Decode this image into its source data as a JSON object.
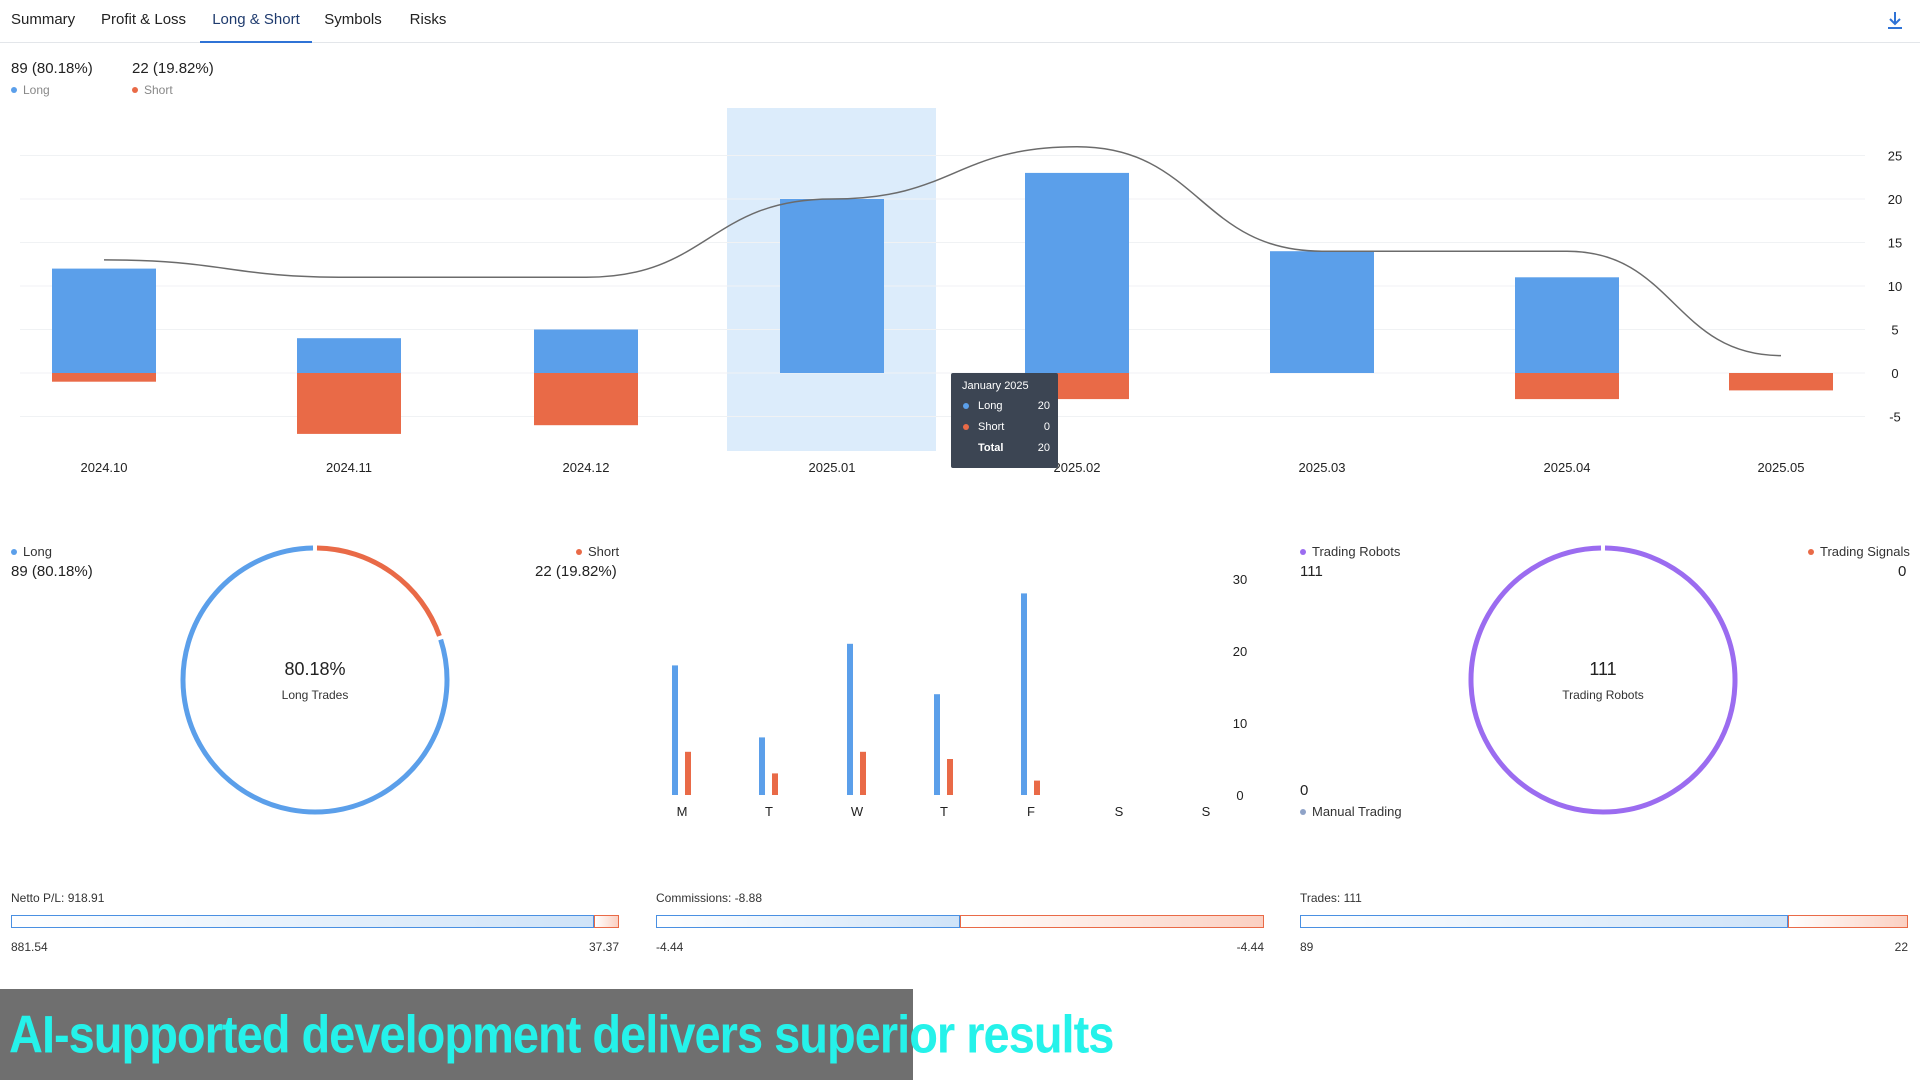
{
  "tabs": [
    {
      "label": "Summary",
      "active": false
    },
    {
      "label": "Profit & Loss",
      "active": false
    },
    {
      "label": "Long & Short",
      "active": true
    },
    {
      "label": "Symbols",
      "active": false
    },
    {
      "label": "Risks",
      "active": false
    }
  ],
  "toolbar": {
    "download_icon": "download-icon"
  },
  "colors": {
    "long": "#5b9fea",
    "short": "#e96a47",
    "robots": "#9b6cf0",
    "manual": "#8fa3c8",
    "accent": "#2f73d6"
  },
  "summary": {
    "long_value": "89 (80.18%)",
    "long_label": "Long",
    "short_value": "22 (19.82%)",
    "short_label": "Short"
  },
  "tooltip": {
    "title": "January 2025",
    "rows": [
      {
        "label": "Long",
        "value": "20"
      },
      {
        "label": "Short",
        "value": "0"
      },
      {
        "label": "Total",
        "value": "20"
      }
    ]
  },
  "donut_long_short": {
    "long_label": "Long",
    "long_value": "89 (80.18%)",
    "short_label": "Short",
    "short_value": "22 (19.82%)",
    "center_value": "80.18%",
    "center_label": "Long Trades",
    "long_fraction": 0.8018
  },
  "donut_robots": {
    "robots_label": "Trading Robots",
    "robots_value": "111",
    "signals_label": "Trading Signals",
    "signals_value": "0",
    "manual_label": "Manual Trading",
    "manual_value": "0",
    "center_value": "111",
    "center_label": "Trading Robots"
  },
  "progress_bars": [
    {
      "title": "Netto P/L: 918.91",
      "left": "881.54",
      "right": "37.37",
      "long_fraction": 0.959
    },
    {
      "title": "Commissions: -8.88",
      "left": "-4.44",
      "right": "-4.44",
      "long_fraction": 0.5
    },
    {
      "title": "Trades: 111",
      "left": "89",
      "right": "22",
      "long_fraction": 0.802
    }
  ],
  "banner": {
    "text": "AI-supported development delivers superior results"
  },
  "chart_data": [
    {
      "type": "bar",
      "categories": [
        "2024.10",
        "2024.11",
        "2024.12",
        "2025.01",
        "2025.02",
        "2025.03",
        "2025.04",
        "2025.05"
      ],
      "series": [
        {
          "name": "Long",
          "values": [
            12,
            4,
            5,
            20,
            23,
            14,
            11,
            0
          ]
        },
        {
          "name": "Short",
          "values": [
            -1,
            -7,
            -6,
            0,
            -3,
            0,
            -3,
            -2
          ]
        },
        {
          "values": [
            13,
            11,
            11,
            20,
            26,
            14,
            14,
            2
          ]
        }
      ],
      "yticks": [
        25,
        20,
        15,
        10,
        5,
        0,
        -5
      ],
      "ylim": [
        -7.5,
        30
      ],
      "highlighted_category": "2025.01",
      "grid": true
    },
    {
      "type": "bar",
      "categories": [
        "M",
        "T",
        "W",
        "T",
        "F",
        "S",
        "S"
      ],
      "series": [
        {
          "name": "Long",
          "values": [
            18,
            8,
            21,
            14,
            28,
            0,
            0
          ]
        },
        {
          "name": "Short",
          "values": [
            6,
            3,
            6,
            5,
            2,
            0,
            0
          ]
        }
      ],
      "yticks": [
        30,
        20,
        10,
        0
      ],
      "ylim": [
        0,
        30
      ]
    },
    {
      "type": "pie",
      "categories": [
        "Long",
        "Short"
      ],
      "values": [
        89,
        22
      ]
    },
    {
      "type": "pie",
      "categories": [
        "Trading Robots",
        "Trading Signals",
        "Manual Trading"
      ],
      "values": [
        111,
        0,
        0
      ]
    }
  ]
}
